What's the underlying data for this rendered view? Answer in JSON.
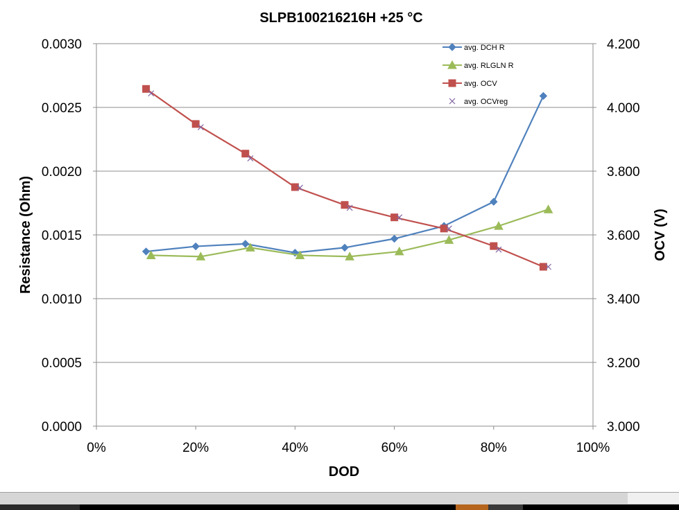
{
  "chart_data": {
    "type": "line",
    "title": "SLPB100216216H +25 °C",
    "xlabel": "DOD",
    "ylabel_left": "Resistance (Ohm)",
    "ylabel_right": "OCV (V)",
    "xlim": [
      0,
      100
    ],
    "ylim_left": [
      0,
      0.003
    ],
    "ylim_right": [
      3.0,
      4.2
    ],
    "x_ticks": [
      "0%",
      "20%",
      "40%",
      "60%",
      "80%",
      "100%"
    ],
    "y_left_ticks": [
      "0.0000",
      "0.0005",
      "0.0010",
      "0.0015",
      "0.0020",
      "0.0025",
      "0.0030"
    ],
    "y_right_ticks": [
      "3.000",
      "3.200",
      "3.400",
      "3.600",
      "3.800",
      "4.000",
      "4.200"
    ],
    "grid": true,
    "legend_position": "top-right",
    "series": [
      {
        "name": "avg. DCH R",
        "axis": "left",
        "marker": "diamond",
        "color": "#4f81bd",
        "line": true,
        "x": [
          10,
          20,
          30,
          40,
          50,
          60,
          70,
          80,
          90
        ],
        "y": [
          0.00137,
          0.00141,
          0.00143,
          0.00136,
          0.0014,
          0.00147,
          0.00157,
          0.00176,
          0.00259
        ]
      },
      {
        "name": "avg. RLGLN R",
        "axis": "left",
        "marker": "triangle",
        "color": "#9bbb59",
        "line": true,
        "x": [
          11,
          21,
          31,
          41,
          51,
          61,
          71,
          81,
          91
        ],
        "y": [
          0.00134,
          0.00133,
          0.0014,
          0.00134,
          0.00133,
          0.00137,
          0.00146,
          0.00157,
          0.0017
        ]
      },
      {
        "name": "avg. OCV",
        "axis": "right",
        "marker": "square",
        "color": "#c0504d",
        "line": true,
        "x": [
          10,
          20,
          30,
          40,
          50,
          60,
          70,
          80,
          90
        ],
        "y": [
          4.058,
          3.948,
          3.855,
          3.75,
          3.694,
          3.655,
          3.62,
          3.565,
          3.5
        ]
      },
      {
        "name": "avg. OCVreg",
        "axis": "right",
        "marker": "x",
        "color": "#8064a2",
        "line": false,
        "x": [
          11,
          21,
          31,
          41,
          51,
          61,
          71,
          81,
          91
        ],
        "y": [
          4.044,
          3.938,
          3.84,
          3.748,
          3.685,
          3.655,
          3.62,
          3.554,
          3.5
        ]
      }
    ]
  }
}
